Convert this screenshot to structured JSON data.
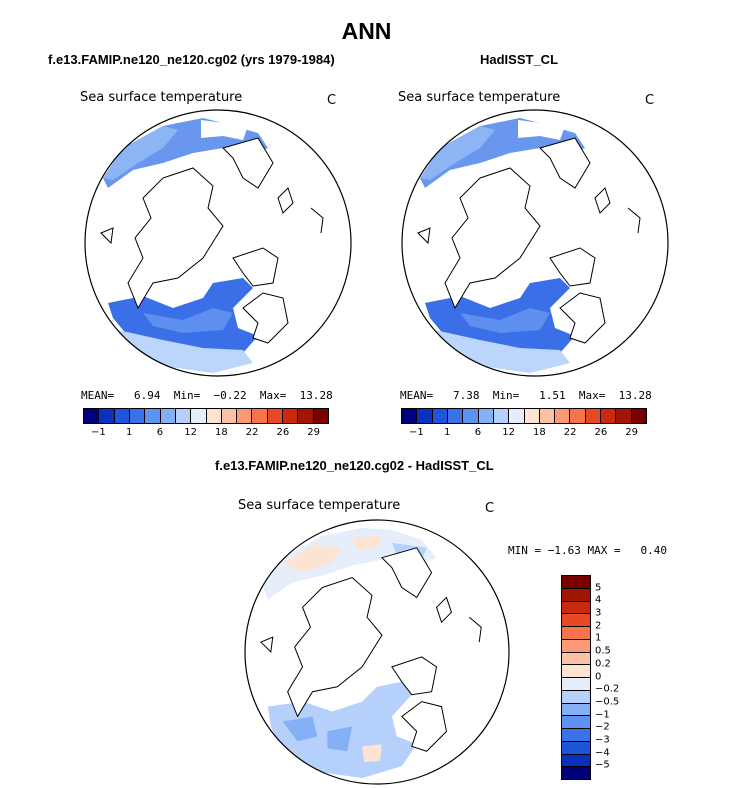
{
  "title": "ANN",
  "panels": [
    {
      "case_title": "f.e13.FAMIP.ne120_ne120.cg02 (yrs 1979-1984)",
      "variable_label": "Sea surface temperature",
      "units": "C",
      "stats": {
        "mean_label": "MEAN=",
        "mean": "6.94",
        "min_label": "Min=",
        "min": "−0.22",
        "max_label": "Max=",
        "max": "13.28"
      },
      "colorbar_ticks": [
        "−1",
        "1",
        "6",
        "12",
        "18",
        "22",
        "26",
        "29"
      ]
    },
    {
      "case_title": "HadISST_CL",
      "variable_label": "Sea surface temperature",
      "units": "C",
      "stats": {
        "mean_label": "MEAN=",
        "mean": "7.38",
        "min_label": "Min=",
        "min": "1.51",
        "max_label": "Max=",
        "max": "13.28"
      },
      "colorbar_ticks": [
        "−1",
        "1",
        "6",
        "12",
        "18",
        "22",
        "26",
        "29"
      ]
    }
  ],
  "diff_panel": {
    "case_title": "f.e13.FAMIP.ne120_ne120.cg02 - HadISST_CL",
    "variable_label": "Sea surface temperature",
    "units": "C",
    "minmax": {
      "min_label": "MIN =",
      "min": "−1.63",
      "max_label": "MAX =",
      "max": "0.40"
    },
    "colorbar_labels": [
      "5",
      "4",
      "3",
      "2",
      "1",
      "0.5",
      "0.2",
      "0",
      "−0.2",
      "−0.5",
      "−1",
      "−2",
      "−3",
      "−4",
      "−5"
    ]
  },
  "colors": {
    "abs_colorbar": [
      "#00007f",
      "#0b2fbf",
      "#1f55d8",
      "#3a72e8",
      "#5e92f0",
      "#86b0f5",
      "#b5d0fa",
      "#e6eefb",
      "#fde3d2",
      "#fcc0a2",
      "#fb9a74",
      "#f7734b",
      "#e64a25",
      "#c82a10",
      "#a11504",
      "#7a0000"
    ],
    "diff_colorbar": [
      "#7a0000",
      "#a11504",
      "#c82a10",
      "#e64a25",
      "#f7734b",
      "#fb9a74",
      "#fcc0a2",
      "#fde3d2",
      "#e6eefb",
      "#b5d0fa",
      "#86b0f5",
      "#5e92f0",
      "#3a72e8",
      "#1f55d8",
      "#0b2fbf",
      "#00007f"
    ]
  }
}
